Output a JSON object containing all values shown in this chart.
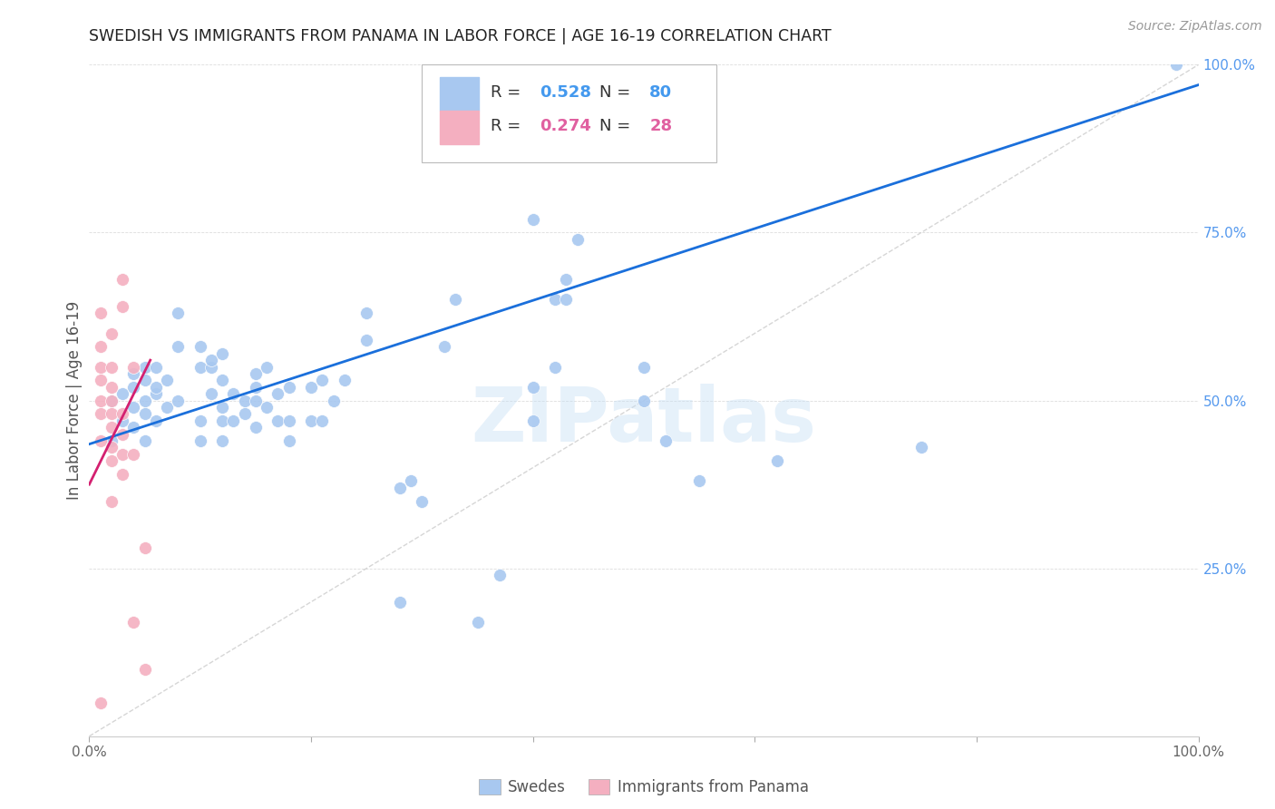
{
  "title": "SWEDISH VS IMMIGRANTS FROM PANAMA IN LABOR FORCE | AGE 16-19 CORRELATION CHART",
  "source": "Source: ZipAtlas.com",
  "ylabel": "In Labor Force | Age 16-19",
  "xlim": [
    0.0,
    1.0
  ],
  "ylim": [
    0.0,
    1.0
  ],
  "xticks": [
    0.0,
    0.2,
    0.4,
    0.6,
    0.8,
    1.0
  ],
  "yticks": [
    0.0,
    0.25,
    0.5,
    0.75,
    1.0
  ],
  "xticklabels": [
    "0.0%",
    "",
    "",
    "",
    "",
    "100.0%"
  ],
  "yticklabels_right": [
    "",
    "25.0%",
    "50.0%",
    "75.0%",
    "100.0%"
  ],
  "bottom_xticklabels": [
    "0.0%",
    "100.0%"
  ],
  "watermark_text": "ZIPatlas",
  "legend_r1": "0.528",
  "legend_n1": "80",
  "legend_r2": "0.274",
  "legend_n2": "28",
  "blue_color": "#a8c8f0",
  "pink_color": "#f4afc0",
  "blue_line_color": "#1a6fdb",
  "pink_line_color": "#d42070",
  "diag_color": "#cccccc",
  "blue_scatter": [
    [
      0.02,
      0.44
    ],
    [
      0.02,
      0.5
    ],
    [
      0.03,
      0.47
    ],
    [
      0.03,
      0.51
    ],
    [
      0.04,
      0.46
    ],
    [
      0.04,
      0.49
    ],
    [
      0.04,
      0.52
    ],
    [
      0.04,
      0.54
    ],
    [
      0.05,
      0.44
    ],
    [
      0.05,
      0.48
    ],
    [
      0.05,
      0.5
    ],
    [
      0.05,
      0.53
    ],
    [
      0.05,
      0.55
    ],
    [
      0.06,
      0.47
    ],
    [
      0.06,
      0.51
    ],
    [
      0.06,
      0.52
    ],
    [
      0.06,
      0.55
    ],
    [
      0.07,
      0.49
    ],
    [
      0.07,
      0.53
    ],
    [
      0.08,
      0.5
    ],
    [
      0.08,
      0.58
    ],
    [
      0.08,
      0.63
    ],
    [
      0.1,
      0.44
    ],
    [
      0.1,
      0.47
    ],
    [
      0.1,
      0.55
    ],
    [
      0.1,
      0.58
    ],
    [
      0.11,
      0.51
    ],
    [
      0.11,
      0.55
    ],
    [
      0.11,
      0.56
    ],
    [
      0.12,
      0.44
    ],
    [
      0.12,
      0.47
    ],
    [
      0.12,
      0.49
    ],
    [
      0.12,
      0.53
    ],
    [
      0.12,
      0.57
    ],
    [
      0.13,
      0.47
    ],
    [
      0.13,
      0.51
    ],
    [
      0.14,
      0.48
    ],
    [
      0.14,
      0.5
    ],
    [
      0.15,
      0.46
    ],
    [
      0.15,
      0.5
    ],
    [
      0.15,
      0.52
    ],
    [
      0.15,
      0.54
    ],
    [
      0.16,
      0.49
    ],
    [
      0.16,
      0.55
    ],
    [
      0.17,
      0.47
    ],
    [
      0.17,
      0.51
    ],
    [
      0.18,
      0.44
    ],
    [
      0.18,
      0.47
    ],
    [
      0.18,
      0.52
    ],
    [
      0.2,
      0.47
    ],
    [
      0.2,
      0.52
    ],
    [
      0.21,
      0.47
    ],
    [
      0.21,
      0.53
    ],
    [
      0.22,
      0.5
    ],
    [
      0.23,
      0.53
    ],
    [
      0.25,
      0.59
    ],
    [
      0.25,
      0.63
    ],
    [
      0.28,
      0.2
    ],
    [
      0.28,
      0.37
    ],
    [
      0.29,
      0.38
    ],
    [
      0.3,
      0.35
    ],
    [
      0.32,
      0.58
    ],
    [
      0.33,
      0.65
    ],
    [
      0.35,
      0.17
    ],
    [
      0.37,
      0.24
    ],
    [
      0.4,
      0.47
    ],
    [
      0.4,
      0.52
    ],
    [
      0.4,
      0.77
    ],
    [
      0.42,
      0.65
    ],
    [
      0.42,
      0.55
    ],
    [
      0.43,
      0.65
    ],
    [
      0.43,
      0.68
    ],
    [
      0.44,
      0.74
    ],
    [
      0.5,
      0.5
    ],
    [
      0.5,
      0.55
    ],
    [
      0.52,
      0.44
    ],
    [
      0.55,
      0.38
    ],
    [
      0.62,
      0.41
    ],
    [
      0.75,
      0.43
    ],
    [
      0.98,
      1.0
    ]
  ],
  "pink_scatter": [
    [
      0.01,
      0.44
    ],
    [
      0.01,
      0.48
    ],
    [
      0.01,
      0.5
    ],
    [
      0.01,
      0.53
    ],
    [
      0.01,
      0.55
    ],
    [
      0.01,
      0.58
    ],
    [
      0.02,
      0.41
    ],
    [
      0.02,
      0.43
    ],
    [
      0.02,
      0.46
    ],
    [
      0.02,
      0.48
    ],
    [
      0.02,
      0.5
    ],
    [
      0.02,
      0.52
    ],
    [
      0.02,
      0.55
    ],
    [
      0.02,
      0.6
    ],
    [
      0.03,
      0.39
    ],
    [
      0.03,
      0.42
    ],
    [
      0.03,
      0.45
    ],
    [
      0.03,
      0.48
    ],
    [
      0.03,
      0.64
    ],
    [
      0.03,
      0.68
    ],
    [
      0.04,
      0.17
    ],
    [
      0.04,
      0.55
    ],
    [
      0.05,
      0.1
    ],
    [
      0.05,
      0.28
    ],
    [
      0.01,
      0.63
    ],
    [
      0.02,
      0.35
    ],
    [
      0.04,
      0.42
    ],
    [
      0.01,
      0.05
    ]
  ],
  "blue_trendline_x": [
    0.0,
    1.0
  ],
  "blue_trendline_y": [
    0.435,
    0.97
  ],
  "pink_trendline_x": [
    0.0,
    0.055
  ],
  "pink_trendline_y": [
    0.375,
    0.56
  ]
}
